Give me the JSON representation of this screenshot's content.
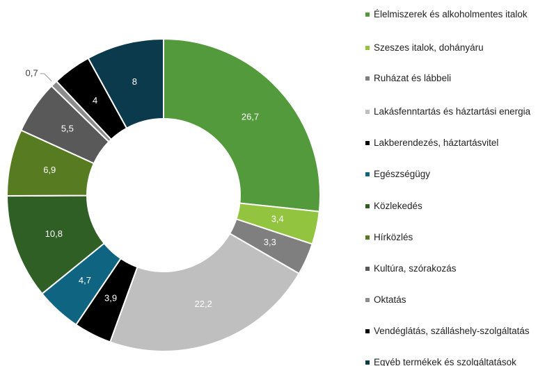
{
  "chart_data": {
    "type": "donut",
    "categories": [
      "Élelmiszerek és alkoholmentes italok",
      "Szeszes italok, dohányáru",
      "Ruházat és lábbeli",
      "Lakásfenntartás és háztartási energia",
      "Lakberendezés, háztartásvitel",
      "Egészségügy",
      "Közlekedés",
      "Hírközlés",
      "Kultúra, szórakozás",
      "Oktatás",
      "Vendéglátás, szálláshely-szolgáltatás",
      "Egyéb termékek és szolgáltatások"
    ],
    "values": [
      26.7,
      3.4,
      3.3,
      22.2,
      3.9,
      4.7,
      10.8,
      6.9,
      5.5,
      0.7,
      4,
      8
    ],
    "value_labels": [
      "26,7",
      "3,4",
      "3,3",
      "22,2",
      "3,9",
      "4,7",
      "10,8",
      "6,9",
      "5,5",
      "0,7",
      "4",
      "8"
    ],
    "colors": [
      "#529a3b",
      "#93c43f",
      "#7f7f7f",
      "#bfbfbf",
      "#000000",
      "#0f6482",
      "#2f5f24",
      "#577b20",
      "#595959",
      "#8c8c8c",
      "#000000",
      "#0c3a4d"
    ],
    "legend": "right"
  }
}
